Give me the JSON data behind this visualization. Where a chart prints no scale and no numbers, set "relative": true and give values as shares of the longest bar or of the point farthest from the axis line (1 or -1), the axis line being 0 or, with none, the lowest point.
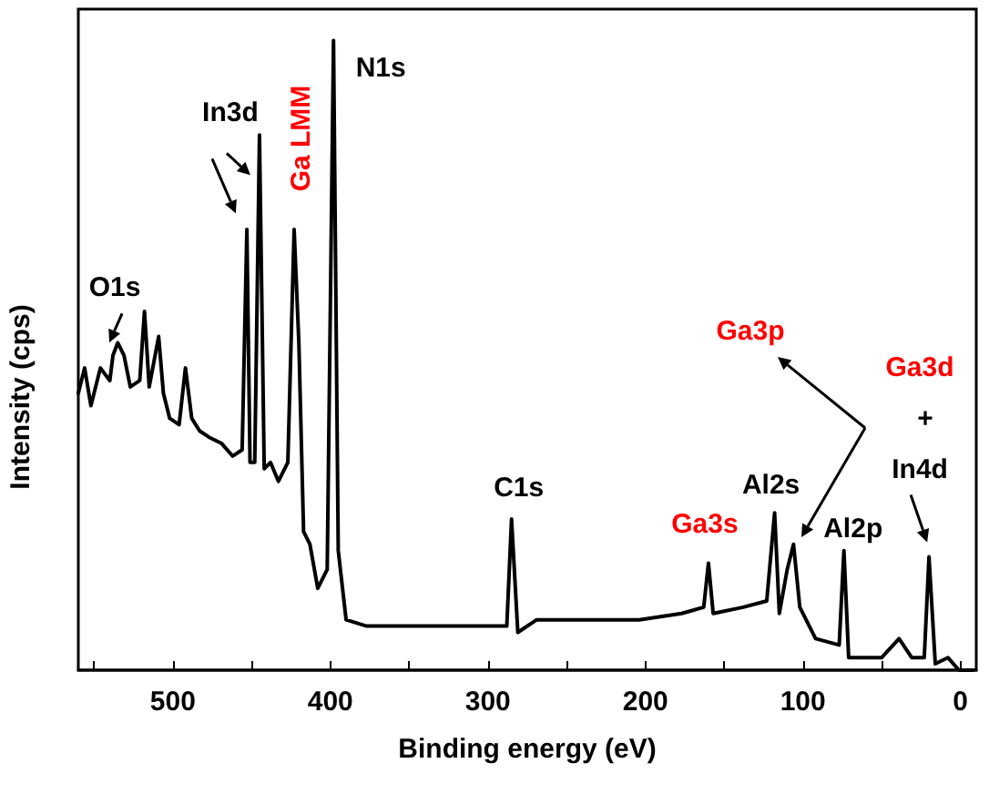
{
  "chart_data": {
    "type": "line",
    "relative": true,
    "xlabel": "Binding energy (eV)",
    "ylabel": "Intensity (cps)",
    "marker": "none",
    "xlim": [
      560,
      -10
    ],
    "xticks": [
      {
        "value": 550,
        "label": null
      },
      500,
      {
        "value": 450,
        "label": null
      },
      400,
      {
        "value": 350,
        "label": null
      },
      300,
      {
        "value": 250,
        "label": null
      },
      200,
      {
        "value": 150,
        "label": null
      },
      100,
      {
        "value": 50,
        "label": null
      },
      0
    ],
    "series": [
      {
        "color": "#000000",
        "x": [
          560,
          556,
          552,
          546,
          540,
          538,
          535,
          531,
          527,
          521,
          518,
          515,
          509,
          506,
          502,
          496,
          492,
          488,
          483,
          477,
          469,
          462,
          456,
          453,
          451,
          448,
          445,
          442,
          438,
          433,
          427,
          423,
          420,
          417,
          413,
          408,
          402,
          398,
          395,
          390,
          377,
          346,
          308,
          288,
          285,
          281,
          269,
          242,
          204,
          177,
          163,
          160,
          157,
          138,
          123,
          118,
          115,
          110,
          106,
          102,
          92,
          77,
          74,
          71,
          50,
          39,
          31,
          23,
          20,
          16,
          8,
          1,
          -8
        ],
        "values": [
          0.44,
          0.48,
          0.42,
          0.48,
          0.46,
          0.5,
          0.52,
          0.5,
          0.45,
          0.46,
          0.57,
          0.45,
          0.53,
          0.44,
          0.4,
          0.39,
          0.48,
          0.4,
          0.38,
          0.37,
          0.36,
          0.34,
          0.35,
          0.7,
          0.33,
          0.33,
          0.85,
          0.32,
          0.33,
          0.3,
          0.33,
          0.7,
          0.52,
          0.22,
          0.2,
          0.13,
          0.16,
          1.0,
          0.19,
          0.08,
          0.07,
          0.07,
          0.07,
          0.07,
          0.24,
          0.06,
          0.08,
          0.08,
          0.08,
          0.09,
          0.1,
          0.17,
          0.09,
          0.1,
          0.11,
          0.25,
          0.09,
          0.16,
          0.2,
          0.1,
          0.05,
          0.04,
          0.19,
          0.02,
          0.02,
          0.05,
          0.02,
          0.02,
          0.18,
          0.01,
          0.02,
          0.0,
          0.0
        ]
      }
    ],
    "annotations": [
      {
        "text": "O1s",
        "x": 538,
        "y": 0.5
      },
      {
        "text": "In3d",
        "x": 445,
        "y": 0.85
      },
      {
        "text": "Ga LMM",
        "x": 423,
        "y": 0.7
      },
      {
        "text": "N1s",
        "x": 398,
        "y": 1.0
      },
      {
        "text": "C1s",
        "x": 285,
        "y": 0.24
      },
      {
        "text": "Ga3s",
        "x": 160,
        "y": 0.17
      },
      {
        "text": "Al2s",
        "x": 118,
        "y": 0.25
      },
      "Ga3p",
      {
        "text": "Al2p",
        "x": 74,
        "y": 0.19
      },
      "Ga3d",
      "+",
      {
        "text": "In4d",
        "x": 20,
        "y": 0.18
      }
    ]
  }
}
